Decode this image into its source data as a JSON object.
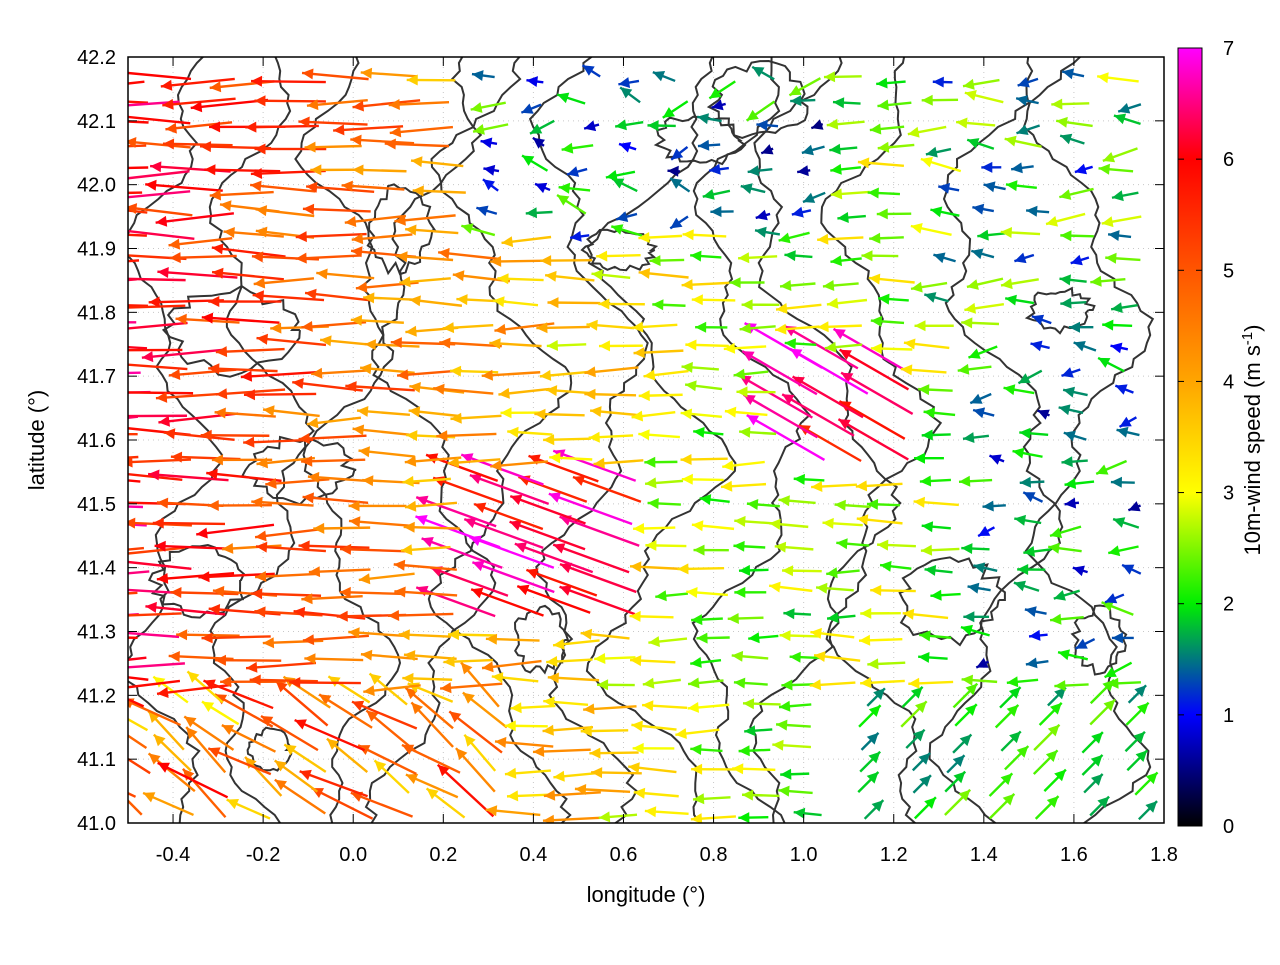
{
  "chart_data": {
    "type": "vector_field",
    "xlabel": "longitude (°)",
    "ylabel": "latitude (°)",
    "xlim": [
      -0.5,
      1.8
    ],
    "ylim": [
      41.0,
      42.2
    ],
    "x_ticks": [
      -0.4,
      -0.2,
      0.0,
      0.2,
      0.4,
      0.6,
      0.8,
      1.0,
      1.2,
      1.4,
      1.6,
      1.8
    ],
    "x_tick_labels": [
      "-0.4",
      "-0.2",
      "0.0",
      "0.2",
      "0.4",
      "0.6",
      "0.8",
      "1.0",
      "1.2",
      "1.4",
      "1.6",
      "1.8"
    ],
    "y_ticks": [
      41.0,
      41.1,
      41.2,
      41.3,
      41.4,
      41.5,
      41.6,
      41.7,
      41.8,
      41.9,
      42.0,
      42.1,
      42.2
    ],
    "y_tick_labels": [
      "41.0",
      "41.1",
      "41.2",
      "41.3",
      "41.4",
      "41.5",
      "41.6",
      "41.7",
      "41.8",
      "41.9",
      "42.0",
      "42.1",
      "42.2"
    ],
    "grid": true,
    "contour_lines": true,
    "colorbar": {
      "label": "10m-wind speed (m s",
      "label_sup": "-1",
      "label_end": ")",
      "range": [
        0,
        7
      ],
      "ticks": [
        0,
        1,
        2,
        3,
        4,
        5,
        6,
        7
      ],
      "tick_labels": [
        "0",
        "1",
        "2",
        "3",
        "4",
        "5",
        "6",
        "7"
      ],
      "colormap": [
        {
          "v": 0.0,
          "color": "#000000"
        },
        {
          "v": 1.0,
          "color": "#0000ff"
        },
        {
          "v": 2.0,
          "color": "#00ee00"
        },
        {
          "v": 3.0,
          "color": "#ffff00"
        },
        {
          "v": 4.0,
          "color": "#ffa500"
        },
        {
          "v": 5.0,
          "color": "#ff5500"
        },
        {
          "v": 6.0,
          "color": "#ff0000"
        },
        {
          "v": 7.0,
          "color": "#ff00ff"
        }
      ]
    },
    "wind_regions": [
      {
        "region": "west, lat 41.0-41.2",
        "direction_deg": 150,
        "speed_range": [
          3,
          6
        ]
      },
      {
        "region": "west, lat 41.2-42.2",
        "direction_deg": 180,
        "speed_range": [
          3,
          6
        ]
      },
      {
        "region": "centre (0.3-0.7, 41.3-41.55)",
        "direction_deg": 160,
        "speed_range": [
          5.5,
          7
        ]
      },
      {
        "region": "centre-east (1.0-1.3, 41.55-41.7)",
        "direction_deg": 150,
        "speed_range": [
          5.5,
          7
        ]
      },
      {
        "region": "north centre (0.4-1.0, 41.9-42.2)",
        "direction_deg": 180,
        "speed_range": [
          0.5,
          2.5
        ]
      },
      {
        "region": "southeast (1.1-1.8, 41.0-41.2)",
        "direction_deg": 45,
        "speed_range": [
          1.5,
          2.5
        ]
      },
      {
        "region": "east (1.4-1.8, 41.3-41.7)",
        "direction_deg": 180,
        "speed_range": [
          0.5,
          2.5
        ]
      }
    ]
  }
}
